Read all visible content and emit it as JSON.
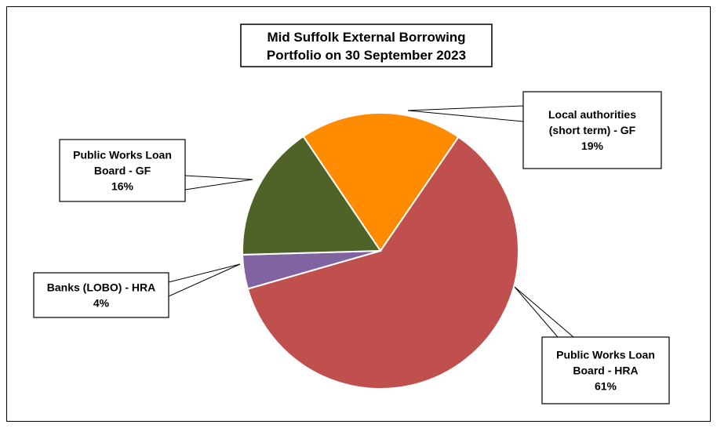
{
  "chart_data": {
    "type": "pie",
    "title_lines": [
      "Mid Suffolk External Borrowing",
      "Portfolio on 30 September 2023"
    ],
    "slices": [
      {
        "label_lines": [
          "Local authorities",
          "(short term) - GF",
          "19%"
        ],
        "value": 19,
        "color": "#FF8C00"
      },
      {
        "label_lines": [
          "Public Works Loan",
          "Board - HRA",
          "61%"
        ],
        "value": 61,
        "color": "#C0504D"
      },
      {
        "label_lines": [
          "Banks (LOBO) - HRA",
          "4%"
        ],
        "value": 4,
        "color": "#8064A2"
      },
      {
        "label_lines": [
          "Public Works Loan",
          "Board - GF",
          "16%"
        ],
        "value": 16,
        "color": "#4F6228"
      }
    ]
  }
}
